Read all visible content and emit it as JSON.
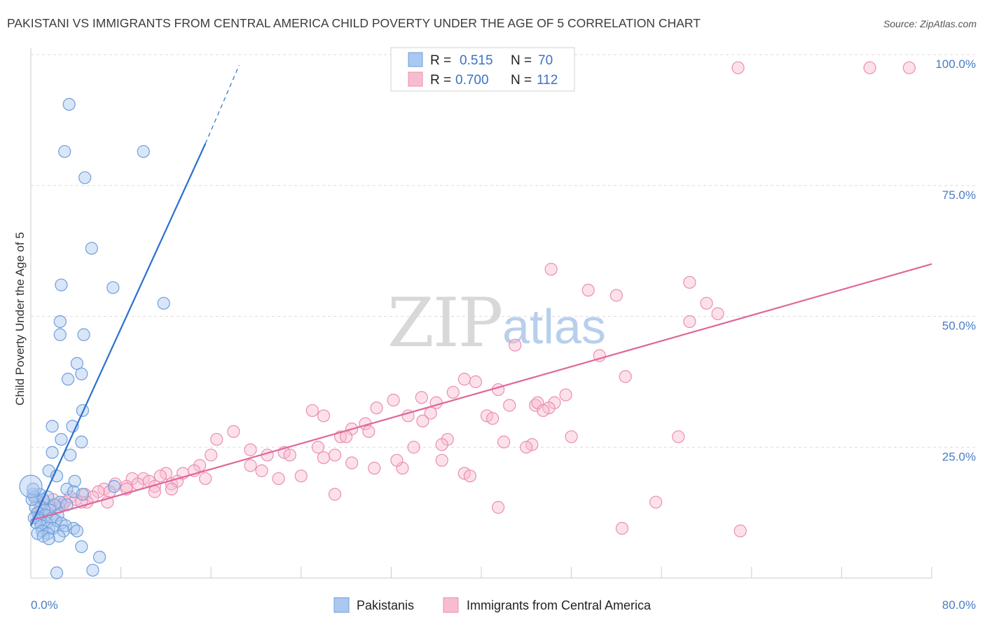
{
  "header": {
    "title": "PAKISTANI VS IMMIGRANTS FROM CENTRAL AMERICA CHILD POVERTY UNDER THE AGE OF 5 CORRELATION CHART",
    "source": "Source: ZipAtlas.com"
  },
  "watermark": {
    "zip": "ZIP",
    "atlas": "atlas"
  },
  "legend": {
    "r_label": "R =",
    "n_label": "N =",
    "series": [
      {
        "r": "0.515",
        "n": "70"
      },
      {
        "r": "0.700",
        "n": "112"
      }
    ]
  },
  "bottom_legend": [
    "Pakistanis",
    "Immigrants from Central America"
  ],
  "colors": {
    "pakistani_fill": "#aac8f0",
    "pakistani_stroke": "#6e9fdb",
    "pakistani_line": "#2a6fce",
    "central_fill": "#f8bcd0",
    "central_stroke": "#ea8fb0",
    "central_line": "#e0669a"
  },
  "chart_data": {
    "type": "scatter",
    "title": "PAKISTANI VS IMMIGRANTS FROM CENTRAL AMERICA CHILD POVERTY UNDER THE AGE OF 5 CORRELATION CHART",
    "xlabel": "",
    "ylabel": "Child Poverty Under the Age of 5",
    "xlim": [
      0,
      80
    ],
    "ylim": [
      0,
      100
    ],
    "x_tick_labels": [
      "0.0%",
      "80.0%"
    ],
    "y_ticks": [
      25,
      50,
      75,
      100
    ],
    "y_tick_labels": [
      "25.0%",
      "50.0%",
      "75.0%",
      "100.0%"
    ],
    "grid": "horizontal-dashed",
    "legend_position": "top-center",
    "series": [
      {
        "name": "Pakistanis",
        "r": 0.515,
        "n": 70,
        "trend": {
          "x0": 0,
          "y0": 10,
          "x1": 15.5,
          "y1": 83,
          "dashed_to_x": 18.5,
          "dashed_to_y": 98
        },
        "points": [
          [
            3.4,
            90.5
          ],
          [
            3.0,
            81.5
          ],
          [
            10.0,
            81.5
          ],
          [
            4.8,
            76.5
          ],
          [
            5.4,
            63.0
          ],
          [
            2.7,
            56.0
          ],
          [
            7.3,
            55.5
          ],
          [
            11.8,
            52.5
          ],
          [
            2.6,
            49.0
          ],
          [
            2.6,
            46.5
          ],
          [
            4.7,
            46.5
          ],
          [
            4.1,
            41.0
          ],
          [
            4.5,
            39.0
          ],
          [
            3.3,
            38.0
          ],
          [
            4.6,
            32.0
          ],
          [
            1.9,
            29.0
          ],
          [
            3.7,
            29.0
          ],
          [
            2.7,
            26.5
          ],
          [
            4.5,
            26.0
          ],
          [
            1.9,
            24.0
          ],
          [
            3.5,
            23.5
          ],
          [
            1.6,
            20.5
          ],
          [
            2.3,
            19.5
          ],
          [
            3.9,
            18.5
          ],
          [
            7.4,
            17.5
          ],
          [
            3.2,
            17.0
          ],
          [
            3.8,
            16.5
          ],
          [
            4.6,
            16.0
          ],
          [
            0.2,
            16.0
          ],
          [
            0.8,
            16.0
          ],
          [
            0.3,
            15.5
          ],
          [
            1.5,
            15.5
          ],
          [
            1.1,
            15.0
          ],
          [
            2.6,
            14.5
          ],
          [
            3.2,
            14.0
          ],
          [
            2.1,
            14.0
          ],
          [
            0.9,
            13.5
          ],
          [
            0.4,
            13.5
          ],
          [
            1.7,
            13.0
          ],
          [
            1.2,
            13.0
          ],
          [
            0.6,
            12.5
          ],
          [
            2.4,
            12.0
          ],
          [
            1.3,
            12.0
          ],
          [
            0.7,
            11.5
          ],
          [
            0.3,
            11.5
          ],
          [
            1.9,
            11.5
          ],
          [
            2.2,
            11.0
          ],
          [
            0.8,
            11.0
          ],
          [
            1.4,
            10.5
          ],
          [
            2.7,
            10.5
          ],
          [
            0.5,
            10.5
          ],
          [
            0.9,
            10.0
          ],
          [
            3.1,
            10.0
          ],
          [
            1.6,
            9.5
          ],
          [
            2.0,
            9.5
          ],
          [
            3.8,
            9.5
          ],
          [
            1.0,
            9.0
          ],
          [
            2.9,
            9.0
          ],
          [
            1.5,
            8.5
          ],
          [
            0.6,
            8.5
          ],
          [
            2.5,
            8.0
          ],
          [
            1.1,
            8.0
          ],
          [
            4.1,
            9.0
          ],
          [
            1.6,
            7.5
          ],
          [
            4.5,
            6.0
          ],
          [
            6.1,
            4.0
          ],
          [
            2.3,
            1.0
          ],
          [
            5.5,
            1.5
          ],
          [
            0.1,
            15.0
          ],
          [
            0.2,
            17.0
          ]
        ]
      },
      {
        "name": "Immigrants from Central America",
        "r": 0.7,
        "n": 112,
        "trend": {
          "x0": 0,
          "y0": 11,
          "x1": 80,
          "y1": 60
        },
        "points": [
          [
            62.8,
            97.5
          ],
          [
            74.5,
            97.5
          ],
          [
            78.0,
            97.5
          ],
          [
            46.2,
            59.0
          ],
          [
            58.5,
            56.5
          ],
          [
            49.5,
            55.0
          ],
          [
            52.0,
            54.0
          ],
          [
            60.0,
            52.5
          ],
          [
            61.0,
            50.5
          ],
          [
            58.5,
            49.0
          ],
          [
            43.0,
            44.5
          ],
          [
            50.5,
            42.5
          ],
          [
            52.8,
            38.5
          ],
          [
            38.5,
            38.0
          ],
          [
            39.5,
            37.5
          ],
          [
            41.5,
            36.0
          ],
          [
            37.5,
            35.5
          ],
          [
            34.7,
            34.5
          ],
          [
            47.5,
            35.0
          ],
          [
            46.5,
            33.5
          ],
          [
            32.2,
            34.0
          ],
          [
            36.0,
            33.5
          ],
          [
            42.5,
            33.0
          ],
          [
            44.8,
            33.0
          ],
          [
            45.0,
            33.5
          ],
          [
            46.0,
            32.5
          ],
          [
            40.5,
            31.0
          ],
          [
            25.0,
            32.0
          ],
          [
            35.5,
            31.5
          ],
          [
            33.5,
            31.0
          ],
          [
            30.7,
            32.5
          ],
          [
            41.0,
            30.5
          ],
          [
            26.0,
            31.0
          ],
          [
            45.5,
            32.0
          ],
          [
            34.8,
            30.0
          ],
          [
            29.7,
            29.5
          ],
          [
            28.5,
            28.5
          ],
          [
            30.0,
            28.0
          ],
          [
            18.0,
            28.0
          ],
          [
            27.5,
            27.0
          ],
          [
            28.0,
            27.0
          ],
          [
            37.0,
            26.5
          ],
          [
            48.0,
            27.0
          ],
          [
            57.5,
            27.0
          ],
          [
            16.5,
            26.5
          ],
          [
            42.0,
            26.0
          ],
          [
            36.5,
            25.5
          ],
          [
            44.5,
            25.5
          ],
          [
            44.0,
            25.0
          ],
          [
            34.0,
            25.0
          ],
          [
            19.5,
            24.5
          ],
          [
            25.5,
            25.0
          ],
          [
            21.0,
            23.5
          ],
          [
            22.5,
            24.0
          ],
          [
            23.0,
            23.5
          ],
          [
            26.0,
            23.0
          ],
          [
            16.0,
            23.5
          ],
          [
            27.0,
            23.5
          ],
          [
            30.5,
            21.0
          ],
          [
            33.0,
            21.0
          ],
          [
            15.0,
            21.5
          ],
          [
            19.5,
            21.5
          ],
          [
            20.5,
            20.5
          ],
          [
            28.5,
            22.0
          ],
          [
            32.5,
            22.5
          ],
          [
            38.5,
            20.0
          ],
          [
            39.0,
            19.5
          ],
          [
            36.5,
            22.5
          ],
          [
            24.0,
            19.5
          ],
          [
            22.0,
            19.0
          ],
          [
            13.5,
            20.0
          ],
          [
            14.5,
            20.5
          ],
          [
            12.0,
            20.0
          ],
          [
            11.5,
            19.5
          ],
          [
            15.5,
            19.0
          ],
          [
            10.0,
            19.0
          ],
          [
            10.5,
            18.5
          ],
          [
            11.0,
            17.5
          ],
          [
            12.5,
            18.0
          ],
          [
            9.0,
            19.0
          ],
          [
            13.0,
            18.5
          ],
          [
            7.5,
            18.0
          ],
          [
            8.5,
            17.5
          ],
          [
            9.5,
            18.0
          ],
          [
            12.5,
            17.0
          ],
          [
            11.0,
            16.5
          ],
          [
            6.5,
            17.0
          ],
          [
            7.0,
            16.5
          ],
          [
            6.0,
            16.5
          ],
          [
            4.8,
            16.0
          ],
          [
            5.5,
            15.5
          ],
          [
            3.5,
            15.5
          ],
          [
            4.0,
            15.0
          ],
          [
            2.0,
            15.0
          ],
          [
            3.0,
            14.5
          ],
          [
            2.8,
            14.0
          ],
          [
            2.5,
            13.5
          ],
          [
            1.5,
            14.0
          ],
          [
            1.8,
            13.5
          ],
          [
            1.0,
            13.0
          ],
          [
            0.7,
            12.5
          ],
          [
            1.2,
            14.5
          ],
          [
            0.5,
            15.0
          ],
          [
            8.5,
            17.0
          ],
          [
            6.8,
            14.5
          ],
          [
            5.0,
            14.5
          ],
          [
            4.5,
            14.5
          ],
          [
            27.0,
            16.0
          ],
          [
            41.5,
            13.5
          ],
          [
            55.5,
            14.5
          ],
          [
            52.5,
            9.5
          ],
          [
            63.0,
            9.0
          ]
        ]
      }
    ]
  }
}
